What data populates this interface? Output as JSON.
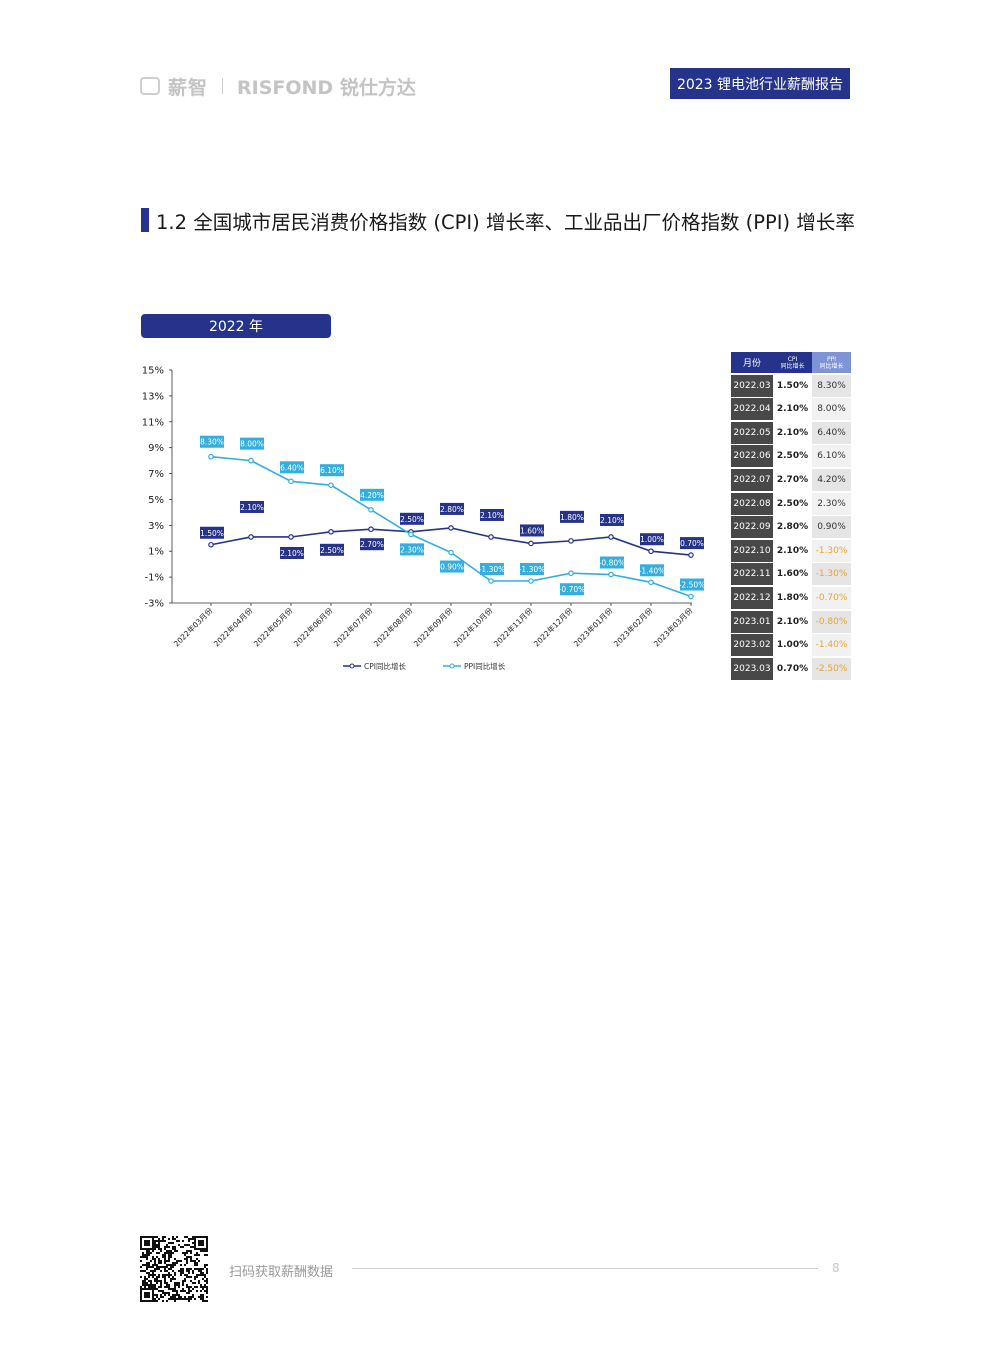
{
  "header": {
    "logo_cn": "薪智",
    "logo_en": "RISFOND 锐仕方达",
    "report_title": "2023 锂电池行业薪酬报告"
  },
  "section": {
    "title": "1.2 全国城市居民消费价格指数 (CPI) 增长率、工业品出厂价格指数 (PPI) 增长率",
    "year_badge": "2022 年"
  },
  "colors": {
    "navy": "#26338a",
    "cpi_line": "#26338a",
    "ppi_line": "#33aee0",
    "negative_ppi": "#f0a22e"
  },
  "chart_data": {
    "type": "line",
    "categories": [
      "2022年03月份",
      "2022年04月份",
      "2022年05月份",
      "2022年06月份",
      "2022年07月份",
      "2022年08月份",
      "2022年09月份",
      "2022年10月份",
      "2022年11月份",
      "2022年12月份",
      "2023年01月份",
      "2023年02月份",
      "2023年03月份"
    ],
    "series": [
      {
        "name": "CPI同比增长",
        "values": [
          1.5,
          2.1,
          2.1,
          2.5,
          2.7,
          2.5,
          2.8,
          2.1,
          1.6,
          1.8,
          2.1,
          1.0,
          0.7
        ],
        "labels": [
          "1.50%",
          "2.10%",
          "2.10%",
          "2.50%",
          "2.70%",
          "2.50%",
          "2.80%",
          "2.10%",
          "1.60%",
          "1.80%",
          "2.10%",
          "1.00%",
          "0.70%"
        ]
      },
      {
        "name": "PPI同比增长",
        "values": [
          8.3,
          8.0,
          6.4,
          6.1,
          4.2,
          2.3,
          0.9,
          -1.3,
          -1.3,
          -0.7,
          -0.8,
          -1.4,
          -2.5
        ],
        "labels": [
          "8.30%",
          "8.00%",
          "6.40%",
          "6.10%",
          "4.20%",
          "2.30%",
          "0.90%",
          "-1.30%",
          "-1.30%",
          "-0.70%",
          "-0.80%",
          "-1.40%",
          "-2.50%"
        ]
      }
    ],
    "ylim": [
      -3,
      15
    ],
    "yticks": [
      "15%",
      "13%",
      "11%",
      "9%",
      "7%",
      "5%",
      "3%",
      "1%",
      "-1%",
      "-3%"
    ],
    "ytick_values": [
      15,
      13,
      11,
      9,
      7,
      5,
      3,
      1,
      -1,
      -3
    ],
    "legend": [
      "CPI同比增长",
      "PPI同比增长"
    ],
    "legend_position": "bottom",
    "grid": false
  },
  "table": {
    "headers": {
      "month": "月份",
      "cpi": [
        "CPI",
        "同比增长"
      ],
      "ppi": [
        "PPI",
        "同比增长"
      ]
    },
    "rows": [
      {
        "month": "2022.03",
        "cpi": "1.50%",
        "ppi": "8.30%"
      },
      {
        "month": "2022.04",
        "cpi": "2.10%",
        "ppi": "8.00%"
      },
      {
        "month": "2022.05",
        "cpi": "2.10%",
        "ppi": "6.40%"
      },
      {
        "month": "2022.06",
        "cpi": "2.50%",
        "ppi": "6.10%"
      },
      {
        "month": "2022.07",
        "cpi": "2.70%",
        "ppi": "4.20%"
      },
      {
        "month": "2022.08",
        "cpi": "2.50%",
        "ppi": "2.30%"
      },
      {
        "month": "2022.09",
        "cpi": "2.80%",
        "ppi": "0.90%"
      },
      {
        "month": "2022.10",
        "cpi": "2.10%",
        "ppi": "-1.30%"
      },
      {
        "month": "2022.11",
        "cpi": "1.60%",
        "ppi": "-1.30%"
      },
      {
        "month": "2022.12",
        "cpi": "1.80%",
        "ppi": "-0.70%"
      },
      {
        "month": "2023.01",
        "cpi": "2.10%",
        "ppi": "-0.80%"
      },
      {
        "month": "2023.02",
        "cpi": "1.00%",
        "ppi": "-1.40%"
      },
      {
        "month": "2023.03",
        "cpi": "0.70%",
        "ppi": "-2.50%"
      }
    ]
  },
  "footer": {
    "scan_text": "扫码获取薪酬数据",
    "page_number": "8"
  }
}
